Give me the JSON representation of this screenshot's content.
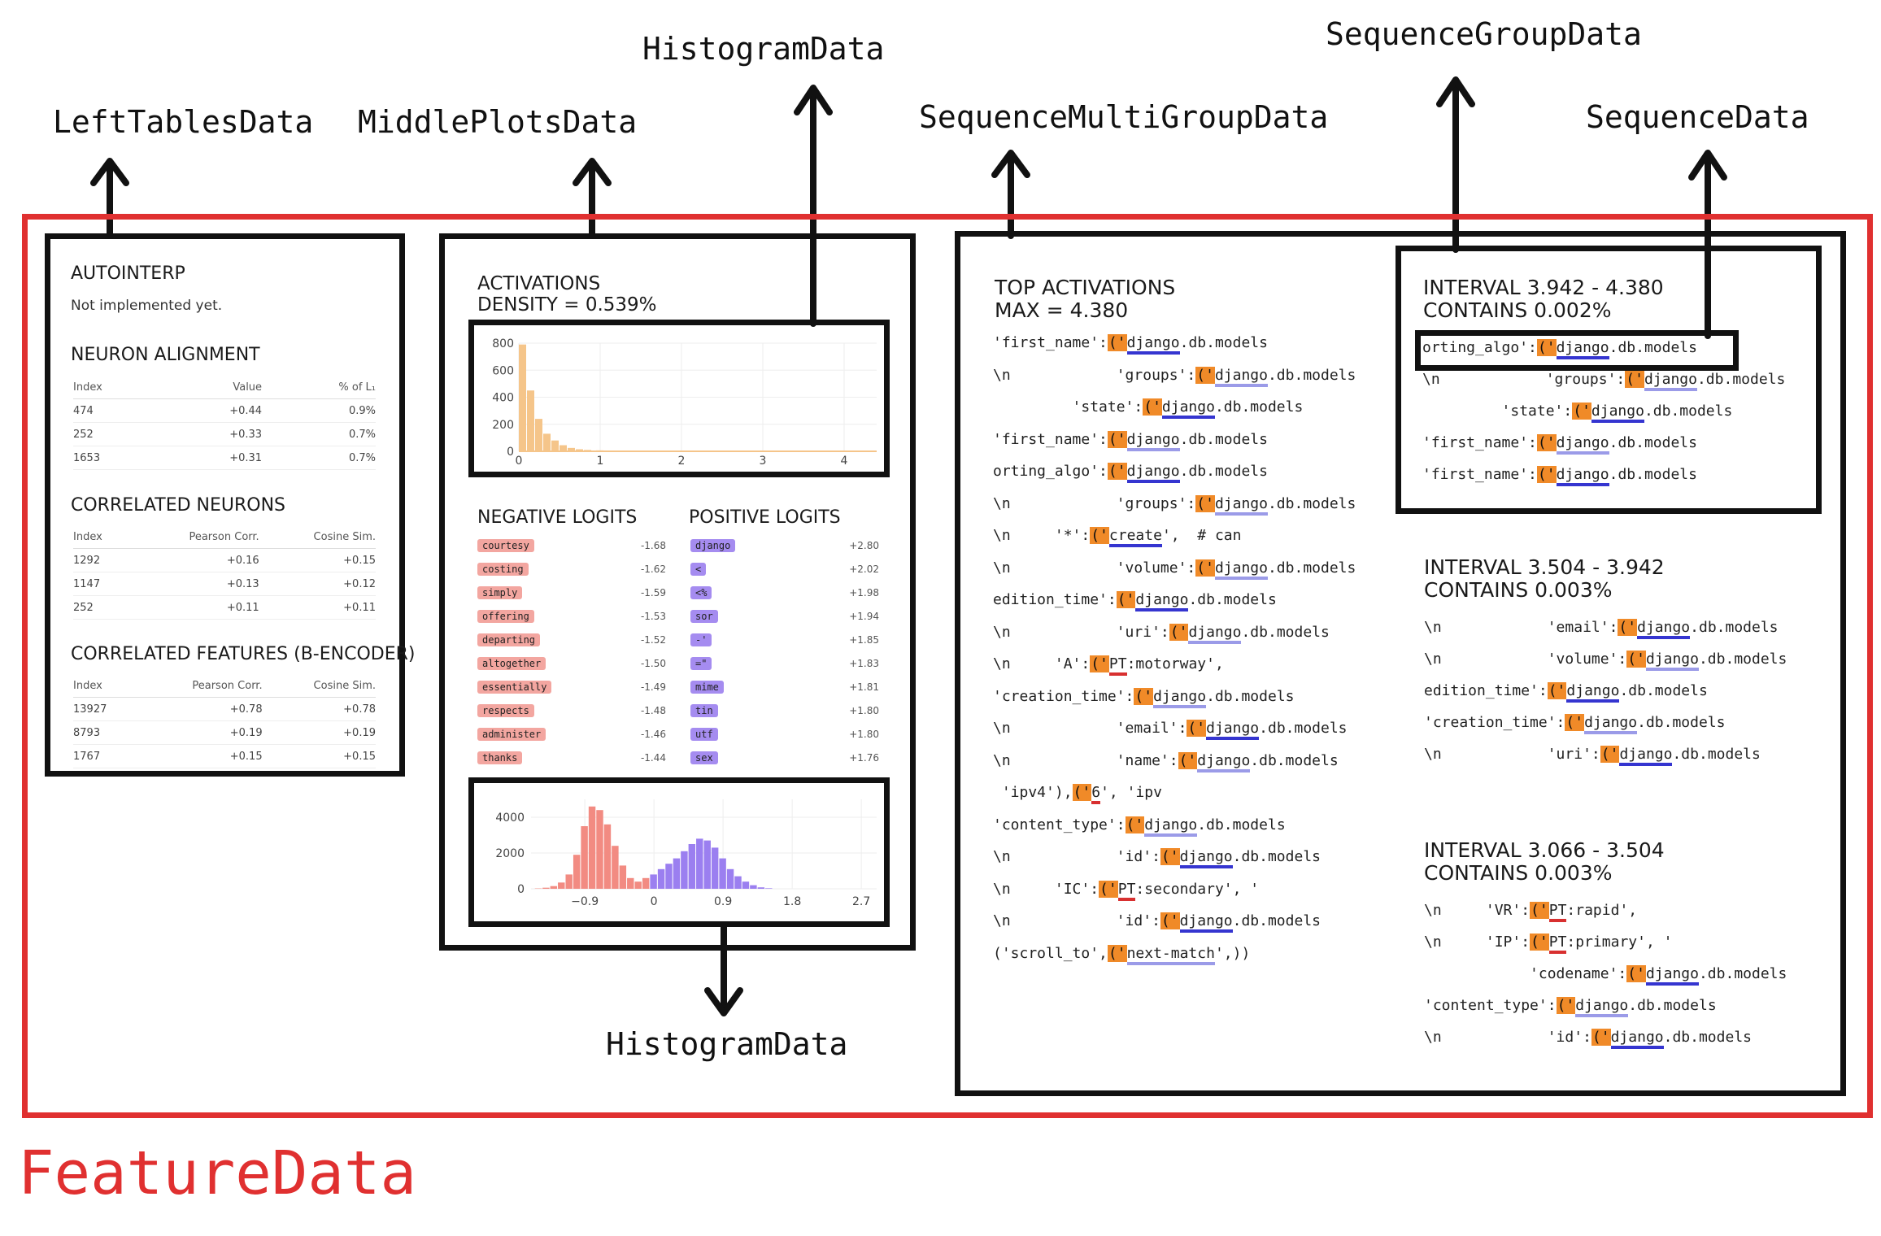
{
  "labels": {
    "left_tables": "LeftTablesData",
    "middle_plots": "MiddlePlotsData",
    "histogram_top": "HistogramData",
    "sequence_multi_group": "SequenceMultiGroupData",
    "sequence_group": "SequenceGroupData",
    "sequence": "SequenceData",
    "histogram_bottom": "HistogramData",
    "feature_data": "FeatureData"
  },
  "left_panel": {
    "autointerp_title": "AUTOINTERP",
    "autointerp_text": "Not implemented yet.",
    "neuron_alignment": {
      "title": "NEURON ALIGNMENT",
      "headers": [
        "Index",
        "Value",
        "% of L₁"
      ],
      "rows": [
        [
          "474",
          "+0.44",
          "0.9%"
        ],
        [
          "252",
          "+0.33",
          "0.7%"
        ],
        [
          "1653",
          "+0.31",
          "0.7%"
        ]
      ]
    },
    "correlated_neurons": {
      "title": "CORRELATED NEURONS",
      "headers": [
        "Index",
        "Pearson Corr.",
        "Cosine Sim."
      ],
      "rows": [
        [
          "1292",
          "+0.16",
          "+0.15"
        ],
        [
          "1147",
          "+0.13",
          "+0.12"
        ],
        [
          "252",
          "+0.11",
          "+0.11"
        ]
      ]
    },
    "correlated_features": {
      "title": "CORRELATED FEATURES (B-ENCODER)",
      "headers": [
        "Index",
        "Pearson Corr.",
        "Cosine Sim."
      ],
      "rows": [
        [
          "13927",
          "+0.78",
          "+0.78"
        ],
        [
          "8793",
          "+0.19",
          "+0.19"
        ],
        [
          "1767",
          "+0.15",
          "+0.15"
        ]
      ]
    }
  },
  "middle_panel": {
    "activations_title": "ACTIVATIONS",
    "density": "DENSITY = 0.539%",
    "negative_title": "NEGATIVE LOGITS",
    "positive_title": "POSITIVE LOGITS",
    "negative_logits": [
      {
        "token": "courtesy",
        "value": "-1.68"
      },
      {
        "token": "costing",
        "value": "-1.62"
      },
      {
        "token": "simply",
        "value": "-1.59"
      },
      {
        "token": "offering",
        "value": "-1.53"
      },
      {
        "token": "departing",
        "value": "-1.52"
      },
      {
        "token": "altogether",
        "value": "-1.50"
      },
      {
        "token": "essentially",
        "value": "-1.49"
      },
      {
        "token": "respects",
        "value": "-1.48"
      },
      {
        "token": "administer",
        "value": "-1.46"
      },
      {
        "token": "thanks",
        "value": "-1.44"
      }
    ],
    "positive_logits": [
      {
        "token": "django",
        "value": "+2.80"
      },
      {
        "token": "<",
        "value": "+2.02"
      },
      {
        "token": "<%",
        "value": "+1.98"
      },
      {
        "token": "sor",
        "value": "+1.94"
      },
      {
        "token": "-'",
        "value": "+1.85"
      },
      {
        "token": "=\"",
        "value": "+1.83"
      },
      {
        "token": "mime",
        "value": "+1.81"
      },
      {
        "token": "tin",
        "value": "+1.80"
      },
      {
        "token": "utf",
        "value": "+1.80"
      },
      {
        "token": "sex",
        "value": "+1.76"
      }
    ]
  },
  "right_panel": {
    "top_title": "TOP ACTIVATIONS",
    "top_max": "MAX = 4.380",
    "top_lines": [
      [
        "'first_name':",
        "('",
        "django",
        ".db.models"
      ],
      [
        "\\n            'groups':",
        "('",
        "django",
        ".db.models"
      ],
      [
        "         'state':",
        "('",
        "django",
        ".db.models"
      ],
      [
        "'first_name':",
        "('",
        "django",
        ".db.models"
      ],
      [
        "orting_algo':",
        "('",
        "django",
        ".db.models"
      ],
      [
        "\\n            'groups':",
        "('",
        "django",
        ".db.models"
      ],
      [
        "\\n     '*':",
        "('",
        "create",
        "',  # can"
      ],
      [
        "\\n            'volume':",
        "('",
        "django",
        ".db.models"
      ],
      [
        "edition_time':",
        "('",
        "django",
        ".db.models"
      ],
      [
        "\\n            'uri':",
        "('",
        "django",
        ".db.models"
      ],
      [
        "\\n     'A':",
        "('",
        "PT",
        ":motorway',"
      ],
      [
        "'creation_time':",
        "('",
        "django",
        ".db.models"
      ],
      [
        "\\n            'email':",
        "('",
        "django",
        ".db.models"
      ],
      [
        "\\n            'name':",
        "('",
        "django",
        ".db.models"
      ],
      [
        " 'ipv4'),",
        "('",
        "6",
        "', 'ipv"
      ],
      [
        "'content_type':",
        "('",
        "django",
        ".db.models"
      ],
      [
        "\\n            'id':",
        "('",
        "django",
        ".db.models"
      ],
      [
        "\\n     'IC':",
        "('",
        "PT",
        ":secondary', '"
      ],
      [
        "\\n            'id':",
        "('",
        "django",
        ".db.models"
      ],
      [
        "('scroll_to',",
        "('",
        "next-match",
        "',))"
      ]
    ],
    "intervals": [
      {
        "title": "INTERVAL 3.942 - 4.380",
        "contains": "CONTAINS 0.002%",
        "lines": [
          [
            "orting_algo':",
            "('",
            "django",
            ".db.models"
          ],
          [
            "\\n            'groups':",
            "('",
            "django",
            ".db.models"
          ],
          [
            "         'state':",
            "('",
            "django",
            ".db.models"
          ],
          [
            "'first_name':",
            "('",
            "django",
            ".db.models"
          ],
          [
            "'first_name':",
            "('",
            "django",
            ".db.models"
          ]
        ]
      },
      {
        "title": "INTERVAL 3.504 - 3.942",
        "contains": "CONTAINS 0.003%",
        "lines": [
          [
            "\\n            'email':",
            "('",
            "django",
            ".db.models"
          ],
          [
            "\\n            'volume':",
            "('",
            "django",
            ".db.models"
          ],
          [
            "edition_time':",
            "('",
            "django",
            ".db.models"
          ],
          [
            "'creation_time':",
            "('",
            "django",
            ".db.models"
          ],
          [
            "\\n            'uri':",
            "('",
            "django",
            ".db.models"
          ]
        ]
      },
      {
        "title": "INTERVAL 3.066 - 3.504",
        "contains": "CONTAINS 0.003%",
        "lines": [
          [
            "\\n     'VR':",
            "('",
            "PT",
            ":rapid',"
          ],
          [
            "\\n     'IP':",
            "('",
            "PT",
            ":primary', '"
          ],
          [
            "            'codename':",
            "('",
            "django",
            ".db.models"
          ],
          [
            "'content_type':",
            "('",
            "django",
            ".db.models"
          ],
          [
            "\\n            'id':",
            "('",
            "django",
            ".db.models"
          ]
        ]
      }
    ]
  },
  "chart_data": [
    {
      "type": "bar",
      "x": [
        0.05,
        0.15,
        0.25,
        0.35,
        0.45,
        0.55,
        0.65,
        0.75,
        0.85,
        1.0,
        1.5,
        2.0,
        2.5,
        3.0,
        3.5,
        4.0,
        4.3
      ],
      "values": [
        790,
        450,
        240,
        130,
        80,
        45,
        25,
        15,
        10,
        7,
        5,
        4,
        4,
        3,
        3,
        2,
        2
      ],
      "xticks": [
        "0",
        "1",
        "2",
        "3",
        "4"
      ],
      "yticks": [
        "0",
        "200",
        "400",
        "600",
        "800"
      ],
      "xlim": [
        0,
        4.4
      ],
      "ylim": [
        0,
        800
      ],
      "color": "#f5c58a"
    },
    {
      "type": "bar",
      "x": [
        -1.5,
        -1.4,
        -1.3,
        -1.2,
        -1.1,
        -1.0,
        -0.9,
        -0.8,
        -0.7,
        -0.6,
        -0.5,
        -0.4,
        -0.3,
        -0.2,
        -0.1,
        0.0,
        0.1,
        0.2,
        0.3,
        0.4,
        0.5,
        0.6,
        0.7,
        0.8,
        0.9,
        1.0,
        1.1,
        1.2,
        1.3,
        1.4,
        1.5
      ],
      "values": [
        20,
        60,
        150,
        350,
        800,
        1900,
        3500,
        4600,
        4400,
        3600,
        2400,
        1300,
        600,
        400,
        600,
        800,
        1100,
        1400,
        1700,
        2100,
        2500,
        2800,
        2700,
        2300,
        1700,
        1100,
        700,
        400,
        200,
        80,
        30
      ],
      "colors_negative": "#f28b82",
      "colors_positive": "#9b7ff0",
      "xticks": [
        "−0.9",
        "0",
        "0.9",
        "1.8",
        "2.7"
      ],
      "yticks": [
        "0",
        "2000",
        "4000"
      ],
      "xlim": [
        -1.6,
        2.9
      ],
      "ylim": [
        0,
        5000
      ]
    }
  ]
}
